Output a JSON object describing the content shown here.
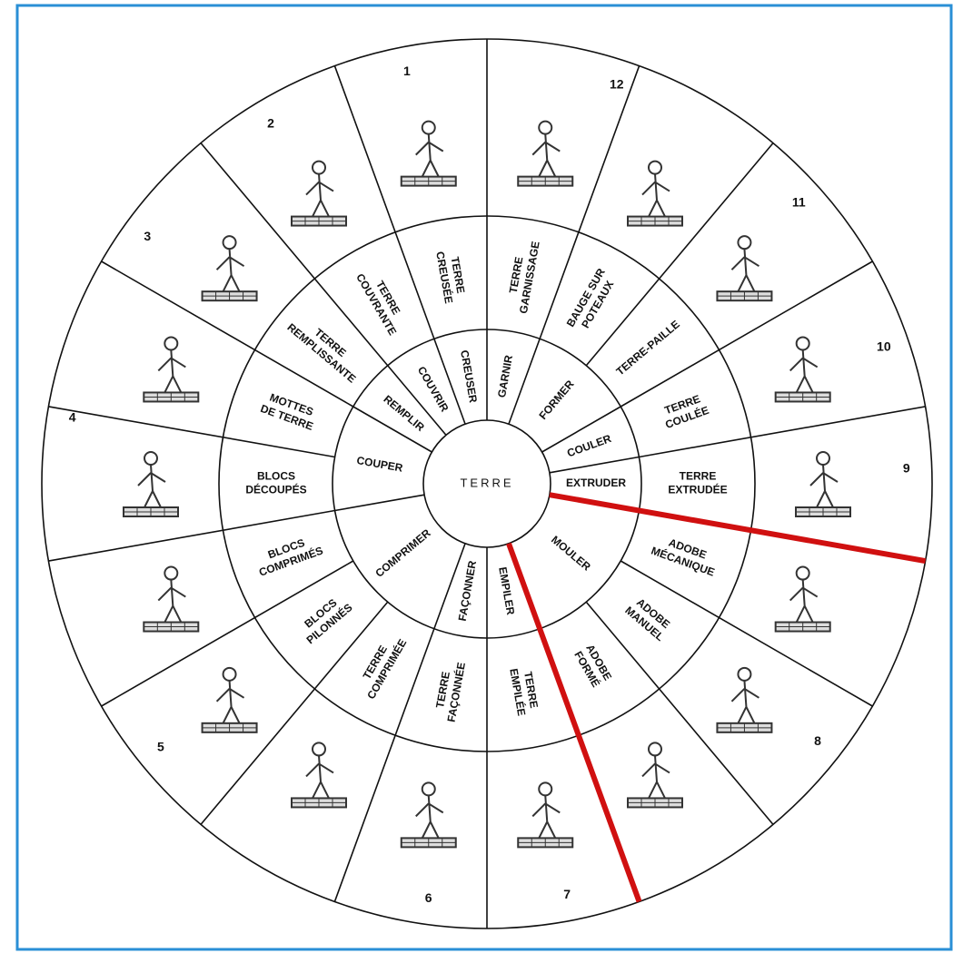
{
  "center": "TERRE",
  "verbs": [
    "EXTRUDER",
    "MOULER",
    "EMPILER",
    "FAÇONNER",
    "COMPRIMER",
    "COUPER",
    "REMPLIR",
    "COUVRIR",
    "CREUSER",
    "GARNIR",
    "FORMER",
    "COULER"
  ],
  "products": [
    [
      "TERRE",
      "EXTRUDÉE"
    ],
    [
      "ADOBE",
      "MÉCANIQUE"
    ],
    [
      "ADOBE",
      "MANUEL"
    ],
    [
      "ADOBE",
      "FORMÉ"
    ],
    [
      "TERRE",
      "EMPILÉE"
    ],
    [
      "TERRE",
      "FAÇONNÉE"
    ],
    [
      "TERRE",
      "COMPRIMÉE"
    ],
    [
      "BLOCS",
      "PILONNÉS"
    ],
    [
      "BLOCS",
      "COMPRIMÉS"
    ],
    [
      "BLOCS",
      "DÉCOUPÉS"
    ],
    [
      "MOTTES",
      "DE TERRE"
    ],
    [
      "TERRE",
      "REMPLISSANTE"
    ],
    [
      "TERRE",
      "COUVRANTE"
    ],
    [
      "TERRE",
      "CREUSÉE"
    ],
    [
      "TERRE",
      "GARNISSAGE"
    ],
    [
      "BAUGE SUR",
      "POTEAUX"
    ],
    [
      "TERRE-PAILLE"
    ],
    [
      "TERRE",
      "COULÉE"
    ]
  ],
  "sector_numbers": [
    "1",
    "2",
    "3",
    "4",
    "5",
    "6",
    "7",
    "8",
    "9",
    "10",
    "11",
    "12"
  ]
}
